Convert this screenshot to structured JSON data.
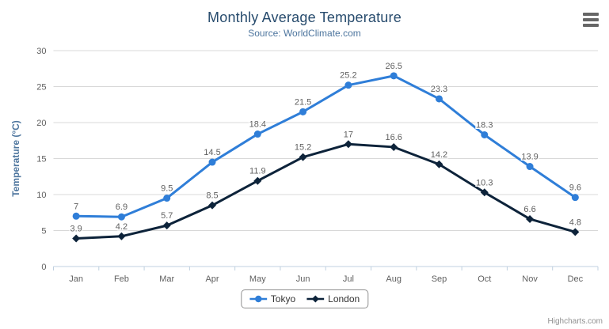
{
  "header": {
    "title": "Monthly Average Temperature",
    "subtitle": "Source: WorldClimate.com"
  },
  "credits_label": "Highcharts.com",
  "menu_icon": "hamburger-icon",
  "colors": {
    "title": "#274b6d",
    "subtitle": "#4d759e",
    "axis_title": "#4d759e",
    "tick_label": "#606060",
    "data_label": "#606060",
    "grid_line": "#d8d8d8",
    "axis_line": "#c0d0e0",
    "legend_border": "#909090",
    "legend_text": "#333333",
    "menu_icon": "#666666",
    "credits": "#909090"
  },
  "chart_data": {
    "type": "line",
    "title": "Monthly Average Temperature",
    "subtitle": "Source: WorldClimate.com",
    "categories": [
      "Jan",
      "Feb",
      "Mar",
      "Apr",
      "May",
      "Jun",
      "Jul",
      "Aug",
      "Sep",
      "Oct",
      "Nov",
      "Dec"
    ],
    "series": [
      {
        "name": "Tokyo",
        "color": "#2f7ed8",
        "marker": "circle",
        "values": [
          7,
          6.9,
          9.5,
          14.5,
          18.4,
          21.5,
          25.2,
          26.5,
          23.3,
          18.3,
          13.9,
          9.6
        ]
      },
      {
        "name": "London",
        "color": "#0d233a",
        "marker": "diamond",
        "values": [
          3.9,
          4.2,
          5.7,
          8.5,
          11.9,
          15.2,
          17,
          16.6,
          14.2,
          10.3,
          6.6,
          4.8
        ]
      }
    ],
    "xlabel": "",
    "ylabel": "Temperature (°C)",
    "ylim": [
      0,
      30
    ],
    "yticks": [
      0,
      5,
      10,
      15,
      20,
      25,
      30
    ],
    "grid": true,
    "data_labels": true,
    "legend_position": "bottom-center"
  }
}
